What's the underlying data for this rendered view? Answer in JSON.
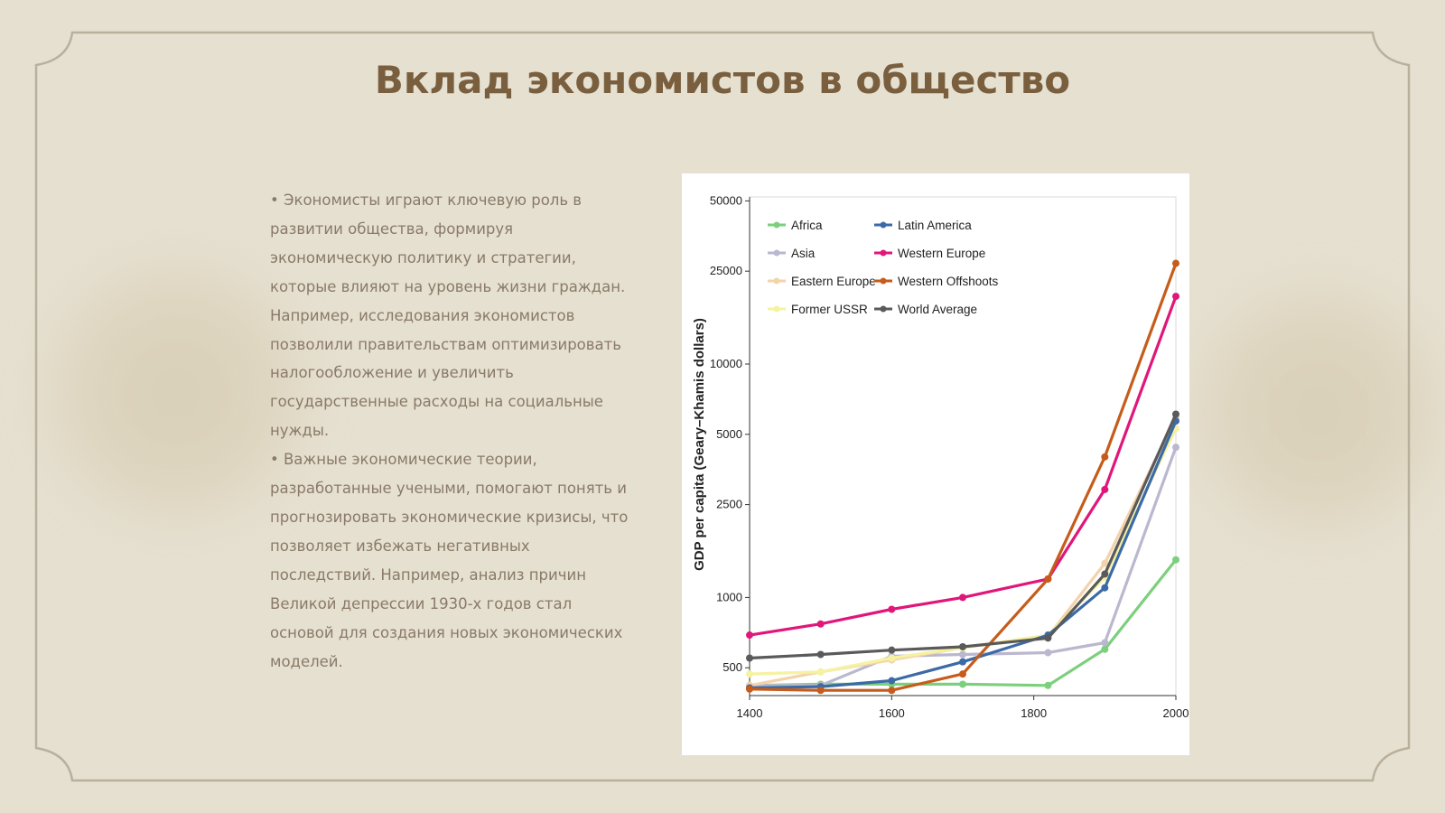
{
  "slide": {
    "title": "Вклад экономистов в общество",
    "paragraphs": [
      "• Экономисты играют ключевую роль в развитии общества, формируя экономическую политику и стратегии, которые влияют на уровень жизни граждан. Например, исследования экономистов позволили правительствам оптимизировать налогообложение и увеличить государственные расходы на социальные нужды.",
      "• Важные экономические теории, разработанные учеными, помогают понять и прогнозировать экономические кризисы, что позволяет избежать негативных последствий. Например, анализ причин Великой депрессии 1930-х годов стал основой для создания новых экономических моделей."
    ]
  },
  "colors": {
    "background": "#e6e0d1",
    "frame": "#b9b09c",
    "title": "#7a5f3f",
    "text": "#8a7a68"
  },
  "chart_data": {
    "type": "line",
    "title": "",
    "xlabel": "",
    "ylabel": "GDP per capita (Geary–Khamis dollars)",
    "y_scale": "log",
    "ylim": [
      380,
      52000
    ],
    "xlim": [
      1400,
      2000
    ],
    "y_ticks": [
      500,
      1000,
      2500,
      5000,
      10000,
      25000,
      50000
    ],
    "x_ticks": [
      1400,
      1600,
      1800,
      2000
    ],
    "grid": false,
    "legend_position": "top-left",
    "series": [
      {
        "name": "Africa",
        "color": "#7ccf7c",
        "points": [
          [
            1400,
            420
          ],
          [
            1500,
            425
          ],
          [
            1600,
            425
          ],
          [
            1700,
            425
          ],
          [
            1820,
            420
          ],
          [
            1900,
            600
          ],
          [
            2000,
            1450
          ]
        ]
      },
      {
        "name": "Asia",
        "color": "#b9b8cf",
        "points": [
          [
            1400,
            420
          ],
          [
            1500,
            420
          ],
          [
            1600,
            560
          ],
          [
            1700,
            570
          ],
          [
            1820,
            580
          ],
          [
            1900,
            640
          ],
          [
            2000,
            4400
          ]
        ]
      },
      {
        "name": "Eastern Europe",
        "color": "#f3d3aa",
        "points": [
          [
            1400,
            420
          ],
          [
            1500,
            480
          ],
          [
            1600,
            540
          ],
          [
            1700,
            610
          ],
          [
            1820,
            680
          ],
          [
            1900,
            1400
          ],
          [
            2000,
            5900
          ]
        ]
      },
      {
        "name": "Former USSR",
        "color": "#f5f2a0",
        "points": [
          [
            1400,
            470
          ],
          [
            1500,
            480
          ],
          [
            1600,
            550
          ],
          [
            1700,
            610
          ],
          [
            1820,
            690
          ],
          [
            1900,
            1220
          ],
          [
            2000,
            5300
          ]
        ]
      },
      {
        "name": "Latin America",
        "color": "#3c6aa6",
        "points": [
          [
            1400,
            410
          ],
          [
            1500,
            415
          ],
          [
            1600,
            440
          ],
          [
            1700,
            530
          ],
          [
            1820,
            690
          ],
          [
            1900,
            1100
          ],
          [
            2000,
            5700
          ]
        ]
      },
      {
        "name": "Western Europe",
        "color": "#e0177a",
        "points": [
          [
            1400,
            690
          ],
          [
            1500,
            770
          ],
          [
            1600,
            890
          ],
          [
            1700,
            1000
          ],
          [
            1820,
            1200
          ],
          [
            1900,
            2900
          ],
          [
            2000,
            19500
          ]
        ]
      },
      {
        "name": "Western Offshoots",
        "color": "#c65c1b",
        "points": [
          [
            1400,
            405
          ],
          [
            1500,
            400
          ],
          [
            1600,
            400
          ],
          [
            1700,
            470
          ],
          [
            1820,
            1200
          ],
          [
            1900,
            4000
          ],
          [
            2000,
            27000
          ]
        ]
      },
      {
        "name": "World Average",
        "color": "#5a5a5a",
        "points": [
          [
            1400,
            550
          ],
          [
            1500,
            570
          ],
          [
            1600,
            595
          ],
          [
            1700,
            615
          ],
          [
            1820,
            670
          ],
          [
            1900,
            1260
          ],
          [
            2000,
            6100
          ]
        ]
      }
    ]
  }
}
